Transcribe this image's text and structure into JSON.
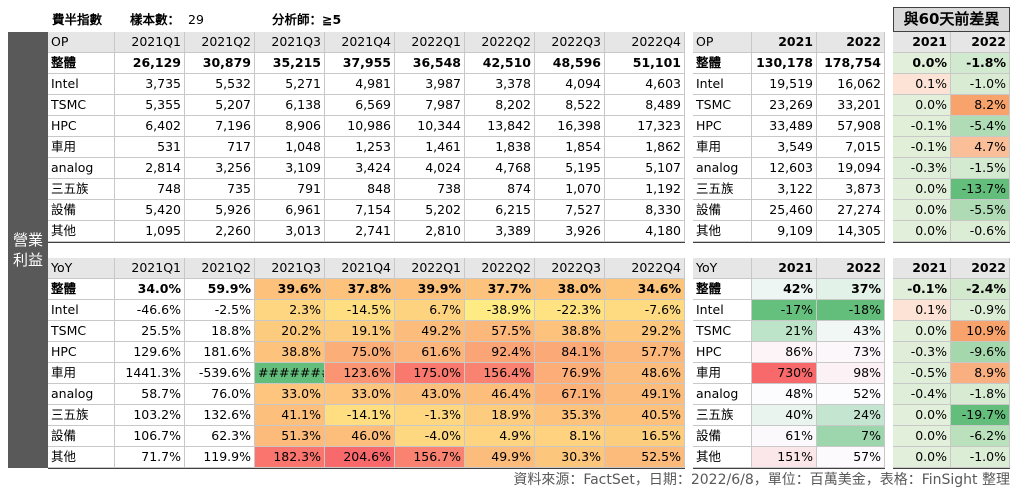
{
  "header": {
    "index": "費半指數",
    "sample_label": "樣本數：",
    "sample_count": "29",
    "analyst": "分析師：≧5",
    "diff_title": "與60天前差異"
  },
  "side_label": "營業利益",
  "sections": [
    {
      "quarterly": {
        "columns": [
          "OP",
          "2021Q1",
          "2021Q2",
          "2021Q3",
          "2021Q4",
          "2022Q1",
          "2022Q2",
          "2022Q3",
          "2022Q4"
        ],
        "rows": [
          [
            "整體",
            "26,129",
            "30,879",
            "35,215",
            "37,955",
            "36,548",
            "42,510",
            "48,596",
            "51,101"
          ],
          [
            "Intel",
            "3,735",
            "5,532",
            "5,271",
            "4,981",
            "3,987",
            "3,378",
            "4,094",
            "4,603"
          ],
          [
            "TSMC",
            "5,355",
            "5,207",
            "6,138",
            "6,569",
            "7,987",
            "8,202",
            "8,522",
            "8,489"
          ],
          [
            "HPC",
            "6,402",
            "7,196",
            "8,906",
            "10,986",
            "10,344",
            "13,842",
            "16,398",
            "17,323"
          ],
          [
            "車用",
            "531",
            "717",
            "1,048",
            "1,253",
            "1,461",
            "1,838",
            "1,854",
            "1,862"
          ],
          [
            "analog",
            "2,814",
            "3,256",
            "3,109",
            "3,424",
            "4,024",
            "4,768",
            "5,195",
            "5,107"
          ],
          [
            "三五族",
            "748",
            "735",
            "791",
            "848",
            "738",
            "874",
            "1,070",
            "1,192"
          ],
          [
            "設備",
            "5,420",
            "5,926",
            "6,961",
            "7,154",
            "5,202",
            "6,215",
            "7,527",
            "8,330"
          ],
          [
            "其他",
            "1,095",
            "2,260",
            "3,013",
            "2,741",
            "2,810",
            "3,389",
            "3,926",
            "4,180"
          ]
        ]
      },
      "annual": {
        "columns": [
          "OP",
          "2021",
          "2022"
        ],
        "rows": [
          [
            "整體",
            "130,178",
            "178,754"
          ],
          [
            "Intel",
            "19,519",
            "16,062"
          ],
          [
            "TSMC",
            "23,269",
            "33,201"
          ],
          [
            "HPC",
            "33,489",
            "57,908"
          ],
          [
            "車用",
            "3,549",
            "7,015"
          ],
          [
            "analog",
            "12,603",
            "19,094"
          ],
          [
            "三五族",
            "3,122",
            "3,873"
          ],
          [
            "設備",
            "25,460",
            "27,274"
          ],
          [
            "其他",
            "9,109",
            "14,305"
          ]
        ]
      },
      "diff": {
        "columns": [
          "2021",
          "2022"
        ],
        "rows": [
          [
            "0.0%",
            "-1.8%"
          ],
          [
            "0.1%",
            "-1.0%"
          ],
          [
            "0.0%",
            "8.2%"
          ],
          [
            "-0.1%",
            "-5.4%"
          ],
          [
            "-0.1%",
            "4.7%"
          ],
          [
            "-0.3%",
            "-1.5%"
          ],
          [
            "0.0%",
            "-13.7%"
          ],
          [
            "0.0%",
            "-5.5%"
          ],
          [
            "0.0%",
            "-0.6%"
          ]
        ]
      }
    },
    {
      "quarterly": {
        "columns": [
          "YoY",
          "2021Q1",
          "2021Q2",
          "2021Q3",
          "2021Q4",
          "2022Q1",
          "2022Q2",
          "2022Q3",
          "2022Q4"
        ],
        "rows": [
          [
            "整體",
            "34.0%",
            "59.9%",
            "39.6%",
            "37.8%",
            "39.9%",
            "37.7%",
            "38.0%",
            "34.6%"
          ],
          [
            "Intel",
            "-46.6%",
            "-2.5%",
            "2.3%",
            "-14.5%",
            "6.7%",
            "-38.9%",
            "-22.3%",
            "-7.6%"
          ],
          [
            "TSMC",
            "25.5%",
            "18.8%",
            "20.2%",
            "19.1%",
            "49.2%",
            "57.5%",
            "38.8%",
            "29.2%"
          ],
          [
            "HPC",
            "129.6%",
            "181.6%",
            "38.8%",
            "75.0%",
            "61.6%",
            "92.4%",
            "84.1%",
            "57.7%"
          ],
          [
            "車用",
            "1441.3%",
            "-539.6%",
            "########",
            "123.6%",
            "175.0%",
            "156.4%",
            "76.9%",
            "48.6%"
          ],
          [
            "analog",
            "58.7%",
            "76.0%",
            "33.0%",
            "33.0%",
            "43.0%",
            "46.4%",
            "67.1%",
            "49.1%"
          ],
          [
            "三五族",
            "103.2%",
            "132.6%",
            "41.1%",
            "-14.1%",
            "-1.3%",
            "18.9%",
            "35.3%",
            "40.5%"
          ],
          [
            "設備",
            "106.7%",
            "62.3%",
            "51.3%",
            "46.0%",
            "-4.0%",
            "4.9%",
            "8.1%",
            "16.5%"
          ],
          [
            "其他",
            "71.7%",
            "119.9%",
            "182.3%",
            "204.6%",
            "156.7%",
            "49.9%",
            "30.3%",
            "52.5%"
          ]
        ]
      },
      "annual": {
        "columns": [
          "YoY",
          "2021",
          "2022"
        ],
        "rows": [
          [
            "整體",
            "42%",
            "37%"
          ],
          [
            "Intel",
            "-17%",
            "-18%"
          ],
          [
            "TSMC",
            "21%",
            "43%"
          ],
          [
            "HPC",
            "86%",
            "73%"
          ],
          [
            "車用",
            "730%",
            "98%"
          ],
          [
            "analog",
            "48%",
            "52%"
          ],
          [
            "三五族",
            "40%",
            "24%"
          ],
          [
            "設備",
            "61%",
            "7%"
          ],
          [
            "其他",
            "151%",
            "57%"
          ]
        ]
      },
      "diff": {
        "columns": [
          "2021",
          "2022"
        ],
        "rows": [
          [
            "-0.1%",
            "-2.4%"
          ],
          [
            "0.1%",
            "-0.9%"
          ],
          [
            "0.0%",
            "10.9%"
          ],
          [
            "-0.3%",
            "-9.6%"
          ],
          [
            "-0.5%",
            "8.9%"
          ],
          [
            "-0.4%",
            "-1.8%"
          ],
          [
            "0.0%",
            "-19.7%"
          ],
          [
            "0.0%",
            "-6.2%"
          ],
          [
            "0.0%",
            "-1.0%"
          ]
        ]
      }
    }
  ],
  "footer": "資料來源：FactSet，日期：2022/6/8，單位：百萬美金，表格：FinSight 整理"
}
